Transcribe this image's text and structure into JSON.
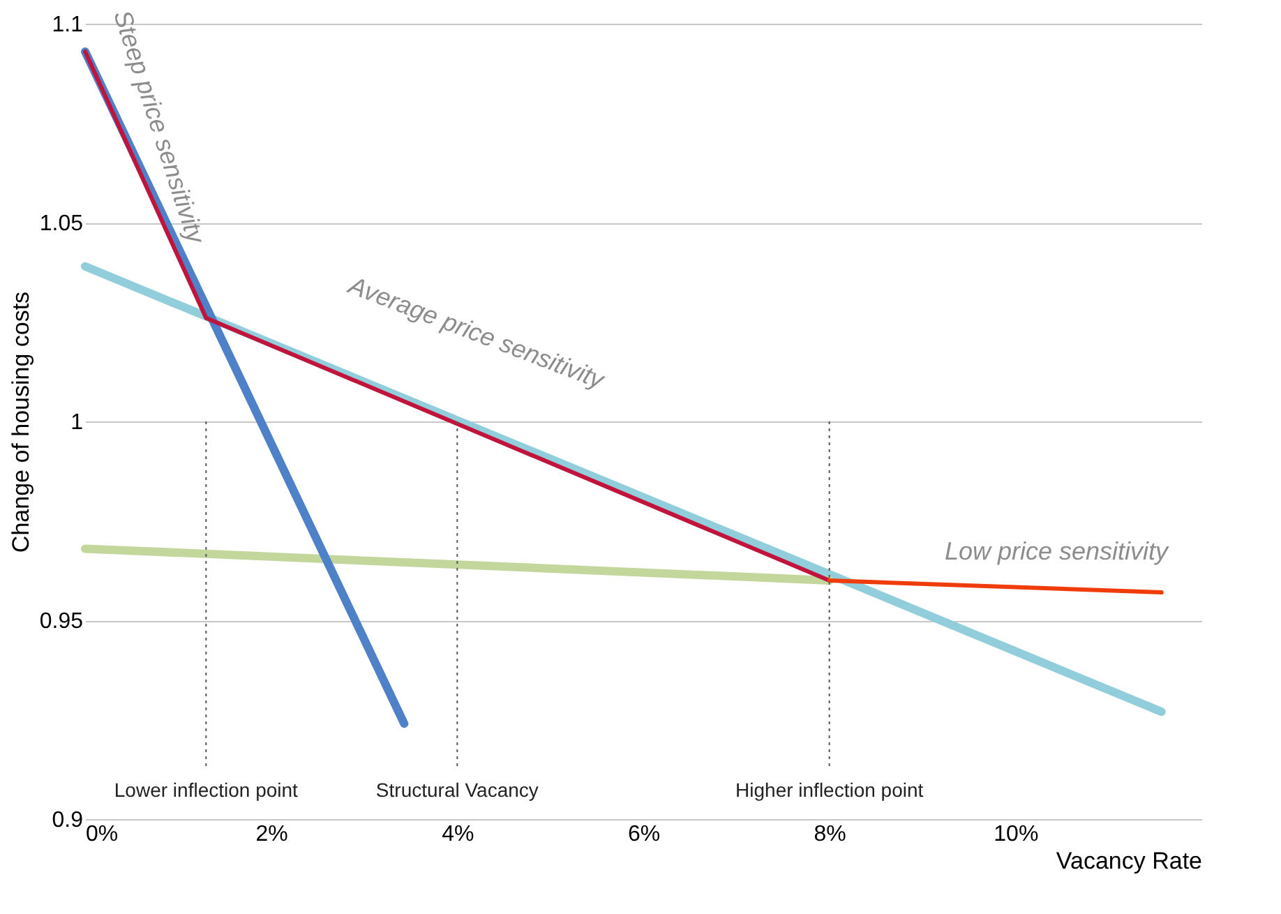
{
  "chart_data": {
    "type": "line",
    "xlabel": "Vacancy Rate",
    "ylabel": "Change of housing costs",
    "xlim": [
      0,
      12
    ],
    "ylim": [
      0.9,
      1.1
    ],
    "xticks": [
      {
        "value": 0,
        "label": "0%"
      },
      {
        "value": 2,
        "label": "2%"
      },
      {
        "value": 4,
        "label": "4%"
      },
      {
        "value": 6,
        "label": "6%"
      },
      {
        "value": 8,
        "label": "8%"
      },
      {
        "value": 10,
        "label": "10%"
      }
    ],
    "yticks": [
      0.9,
      0.95,
      1,
      1.05,
      1.1
    ],
    "grid": "y",
    "marker": "none",
    "line_style": "solid",
    "series": [
      {
        "color": "#92cddc",
        "x": [
          0,
          11.57
        ],
        "values": [
          1.039,
          0.927
        ]
      },
      {
        "color": "#c3d69b",
        "x": [
          0,
          8
        ],
        "values": [
          0.968,
          0.96
        ]
      },
      {
        "color": "#4f81c9",
        "x": [
          0,
          3.43
        ],
        "values": [
          1.093,
          0.924
        ]
      },
      {
        "color": "#c0143c",
        "x": [
          0,
          1.3,
          8
        ],
        "values": [
          1.093,
          1.026,
          0.96
        ]
      },
      {
        "color": "#f03c0a",
        "x": [
          8,
          11.57
        ],
        "values": [
          0.96,
          0.957
        ]
      }
    ],
    "ref_lines": [
      {
        "axis": "x",
        "value": 1.3,
        "label": "Lower inflection point",
        "color": "#555555",
        "line_style": "dotted"
      },
      {
        "axis": "x",
        "value": 4,
        "label": "Structural Vacancy",
        "color": "#555555",
        "line_style": "dotted"
      },
      {
        "axis": "x",
        "value": 8,
        "label": "Higher inflection point",
        "color": "#555555",
        "line_style": "dotted"
      }
    ],
    "annotations": [
      "Steep price sensitivity",
      "Average price sensitivity",
      "Low price sensitivity"
    ]
  }
}
